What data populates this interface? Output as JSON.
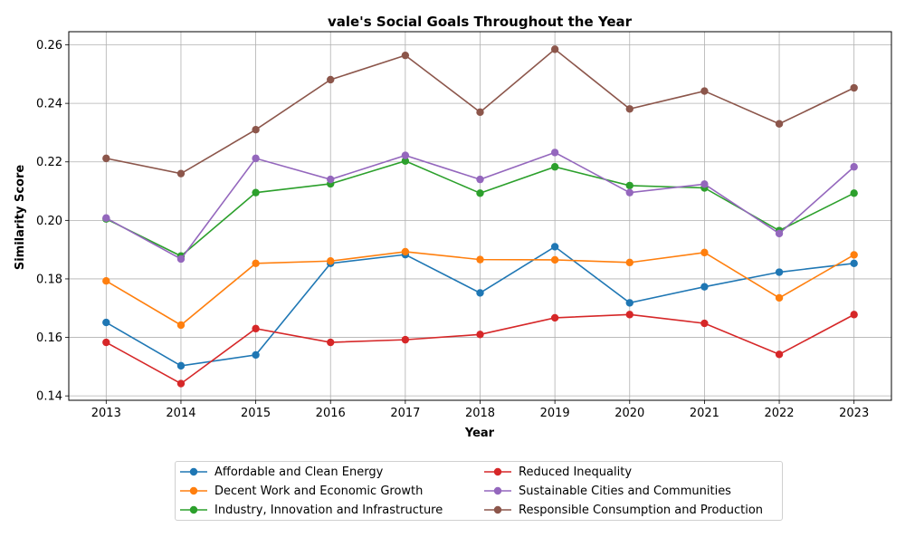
{
  "chart_data": {
    "type": "line",
    "title": "vale's Social Goals Throughout the Year",
    "xlabel": "Year",
    "ylabel": "Similarity Score",
    "x": [
      2013,
      2014,
      2015,
      2016,
      2017,
      2018,
      2019,
      2020,
      2021,
      2022,
      2023
    ],
    "x_tick_labels": [
      "2013",
      "2014",
      "2015",
      "2016",
      "2017",
      "2018",
      "2019",
      "2020",
      "2021",
      "2022",
      "2023"
    ],
    "ylim": [
      0.1385,
      0.2645
    ],
    "y_ticks": [
      0.14,
      0.16,
      0.18,
      0.2,
      0.22,
      0.24,
      0.26
    ],
    "y_tick_labels": [
      "0.14",
      "0.16",
      "0.18",
      "0.20",
      "0.22",
      "0.24",
      "0.26"
    ],
    "grid": true,
    "legend_position": "bottom-center, 2 columns",
    "series": [
      {
        "name": "Affordable and Clean Energy",
        "color": "#1f77b4",
        "values": [
          0.1651,
          0.1503,
          0.154,
          0.1853,
          0.1883,
          0.1752,
          0.191,
          0.1718,
          0.1773,
          0.1823,
          0.1853
        ]
      },
      {
        "name": "Decent Work and Economic Growth",
        "color": "#ff7f0e",
        "values": [
          0.1793,
          0.1642,
          0.1853,
          0.1861,
          0.1893,
          0.1866,
          0.1865,
          0.1856,
          0.189,
          0.1735,
          0.1882
        ]
      },
      {
        "name": "Industry, Innovation and Infrastructure",
        "color": "#2ca02c",
        "values": [
          0.2005,
          0.1878,
          0.2095,
          0.2125,
          0.2203,
          0.2093,
          0.2183,
          0.2119,
          0.2111,
          0.1965,
          0.2093
        ]
      },
      {
        "name": "Reduced Inequality",
        "color": "#d62728",
        "values": [
          0.1583,
          0.1442,
          0.163,
          0.1583,
          0.1592,
          0.161,
          0.1667,
          0.1678,
          0.1648,
          0.1542,
          0.1678
        ]
      },
      {
        "name": "Sustainable Cities and Communities",
        "color": "#9467bd",
        "values": [
          0.2008,
          0.1868,
          0.2212,
          0.214,
          0.2222,
          0.214,
          0.2232,
          0.2095,
          0.2124,
          0.1955,
          0.2183
        ]
      },
      {
        "name": "Responsible Consumption and Production",
        "color": "#8c564b",
        "values": [
          0.2212,
          0.216,
          0.231,
          0.2481,
          0.2564,
          0.237,
          0.2585,
          0.2381,
          0.2442,
          0.233,
          0.2453
        ]
      }
    ]
  }
}
